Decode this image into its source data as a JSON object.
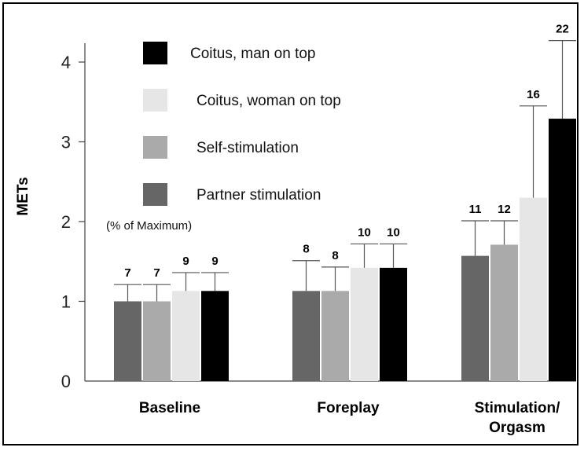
{
  "chart_data": {
    "type": "bar",
    "title": "",
    "xlabel": "",
    "ylabel": "METs",
    "ylim": [
      0,
      4.3
    ],
    "yticks": [
      0,
      1,
      2,
      3,
      4
    ],
    "annotation": "(% of Maximum)",
    "categories": [
      "Baseline",
      "Foreplay",
      "Stimulation/\nOrgasm"
    ],
    "series": [
      {
        "name": "Partner stimulation",
        "color": "#666666",
        "values": [
          1.0,
          1.13,
          1.57
        ],
        "errors": [
          0.21,
          0.38,
          0.44
        ],
        "labels": [
          "",
          "8",
          "11"
        ]
      },
      {
        "name": "Self-stimulation",
        "color": "#aaaaaa",
        "values": [
          1.0,
          1.13,
          1.71
        ],
        "errors": [
          0.21,
          0.3,
          0.3
        ],
        "labels": [
          "7",
          "8",
          "12"
        ]
      },
      {
        "name": "Coitus, woman on top",
        "color": "#e6e6e6",
        "values": [
          1.13,
          1.42,
          2.3
        ],
        "errors": [
          0.23,
          0.3,
          1.15
        ],
        "labels": [
          "9",
          "10",
          "16"
        ]
      },
      {
        "name": "Coitus, man on top",
        "color": "#000000",
        "values": [
          1.13,
          1.42,
          3.29
        ],
        "errors": [
          0.23,
          0.3,
          0.98
        ],
        "labels": [
          "9",
          "10",
          "22"
        ]
      }
    ],
    "extra_labels": [
      {
        "category": 0,
        "series": 0,
        "text": "7"
      }
    ],
    "legend": {
      "placement": "top-left",
      "entries": [
        "Coitus, man on top",
        "Coitus, woman on top",
        "Self-stimulation",
        "Partner stimulation"
      ]
    }
  }
}
